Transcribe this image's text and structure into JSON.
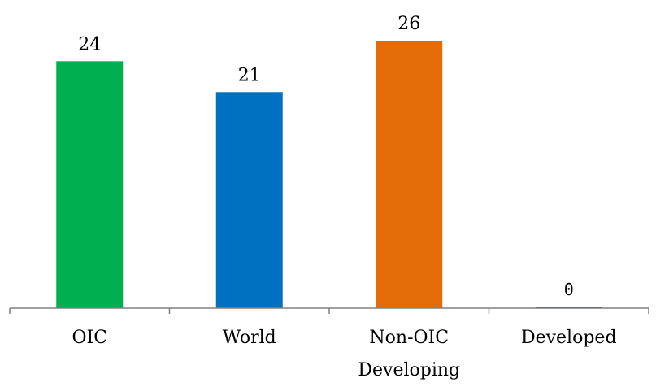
{
  "chart_data": {
    "type": "bar",
    "title": "",
    "xlabel": "",
    "ylabel": "",
    "categories": [
      [
        "OIC"
      ],
      [
        "World"
      ],
      [
        "Non-OIC",
        "Developing"
      ],
      [
        "Developed"
      ]
    ],
    "values": [
      24,
      21,
      26,
      0
    ],
    "value_labels": [
      "24",
      "21",
      "26",
      "0"
    ],
    "colors": [
      "#00b050",
      "#0070c0",
      "#e36c09",
      "#1f3c88"
    ],
    "ylim": [
      0,
      26
    ],
    "grid": false,
    "legend": "none"
  }
}
